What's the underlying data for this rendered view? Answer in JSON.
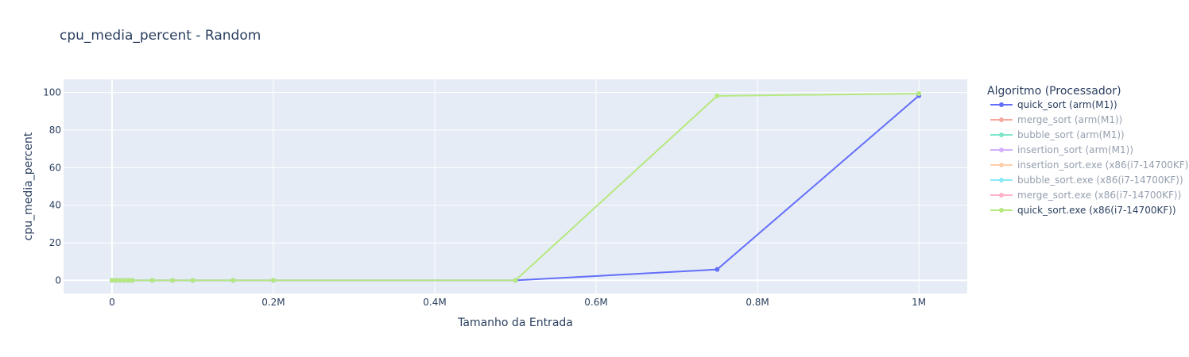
{
  "chart_data": {
    "type": "line",
    "title": "cpu_media_percent - Random",
    "xlabel": "Tamanho da Entrada",
    "ylabel": "cpu_media_percent",
    "xlim": [
      -60000,
      1060000
    ],
    "ylim": [
      -7,
      107
    ],
    "x_ticks": [
      {
        "value": 0,
        "label": "0"
      },
      {
        "value": 200000,
        "label": "0.2M"
      },
      {
        "value": 400000,
        "label": "0.4M"
      },
      {
        "value": 600000,
        "label": "0.6M"
      },
      {
        "value": 800000,
        "label": "0.8M"
      },
      {
        "value": 1000000,
        "label": "1M"
      }
    ],
    "y_ticks": [
      {
        "value": 0,
        "label": "0"
      },
      {
        "value": 20,
        "label": "20"
      },
      {
        "value": 40,
        "label": "40"
      },
      {
        "value": 60,
        "label": "60"
      },
      {
        "value": 80,
        "label": "80"
      },
      {
        "value": 100,
        "label": "100"
      }
    ],
    "grid": true,
    "legend_title": "Algoritmo (Processador)",
    "legend_position": "right",
    "series": [
      {
        "name": "quick_sort (arm(M1))",
        "color": "#636efa",
        "visible": true,
        "x": [
          0,
          5000,
          10000,
          15000,
          20000,
          25000,
          50000,
          75000,
          100000,
          150000,
          200000,
          500000,
          750000,
          1000000
        ],
        "y": [
          0,
          0,
          0,
          0,
          0,
          0,
          0,
          0,
          0,
          0,
          0,
          0,
          5.8,
          98.3
        ]
      },
      {
        "name": "merge_sort (arm(M1))",
        "color": "#ef553b",
        "visible": false,
        "x": [],
        "y": []
      },
      {
        "name": "bubble_sort (arm(M1))",
        "color": "#00cc96",
        "visible": false,
        "x": [],
        "y": []
      },
      {
        "name": "insertion_sort (arm(M1))",
        "color": "#ab63fa",
        "visible": false,
        "x": [],
        "y": []
      },
      {
        "name": "insertion_sort.exe (x86(i7-14700KF))",
        "color": "#ffa15a",
        "visible": false,
        "x": [],
        "y": []
      },
      {
        "name": "bubble_sort.exe (x86(i7-14700KF))",
        "color": "#19d3f3",
        "visible": false,
        "x": [],
        "y": []
      },
      {
        "name": "merge_sort.exe (x86(i7-14700KF))",
        "color": "#ff6692",
        "visible": false,
        "x": [],
        "y": []
      },
      {
        "name": "quick_sort.exe (x86(i7-14700KF))",
        "color": "#b6e880",
        "visible": true,
        "x": [
          0,
          5000,
          10000,
          15000,
          20000,
          25000,
          50000,
          75000,
          100000,
          150000,
          200000,
          500000,
          750000,
          1000000
        ],
        "y": [
          0,
          0,
          0,
          0,
          0,
          0,
          0,
          0,
          0,
          0,
          0,
          0,
          98.2,
          99.4
        ]
      }
    ]
  }
}
